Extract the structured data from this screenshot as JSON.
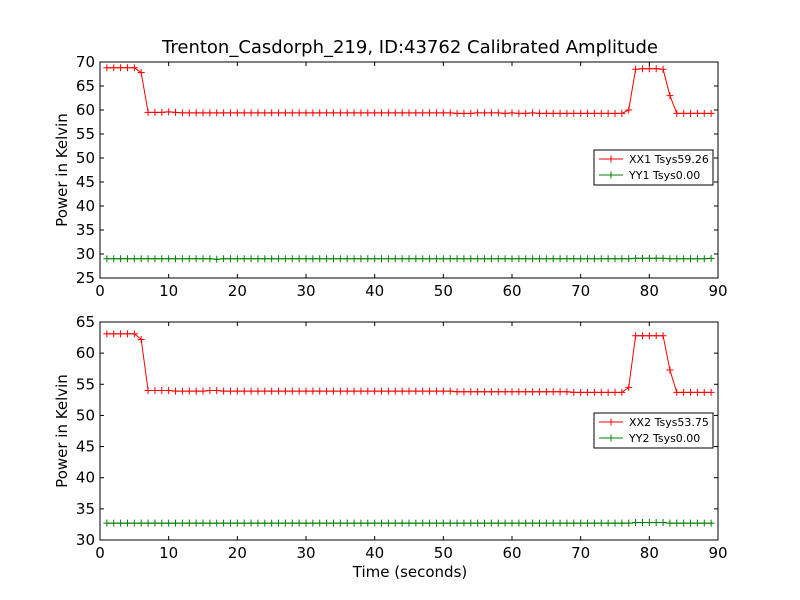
{
  "chart_data": {
    "title": "Trenton_Casdorph_219, ID:43762 Calibrated Amplitude",
    "xlabel": "Time (seconds)",
    "ylabel": "Power in Kelvin",
    "xlim": [
      0,
      90
    ],
    "xticks": [
      0,
      10,
      20,
      30,
      40,
      50,
      60,
      70,
      80,
      90
    ],
    "panels": [
      {
        "type": "line",
        "ylim": [
          25,
          70
        ],
        "yticks": [
          25,
          30,
          35,
          40,
          45,
          50,
          55,
          60,
          65,
          70
        ],
        "legend_position": "center-right",
        "series": [
          {
            "name": "XX1 Tsys59.26",
            "color": "#ff0000",
            "x": [
              1,
              2,
              3,
              4,
              5,
              6,
              7,
              8,
              9,
              10,
              11,
              12,
              13,
              14,
              15,
              16,
              17,
              18,
              19,
              20,
              21,
              22,
              23,
              24,
              25,
              26,
              27,
              28,
              29,
              30,
              31,
              32,
              33,
              34,
              35,
              36,
              37,
              38,
              39,
              40,
              41,
              42,
              43,
              44,
              45,
              46,
              47,
              48,
              49,
              50,
              51,
              52,
              53,
              54,
              55,
              56,
              57,
              58,
              59,
              60,
              61,
              62,
              63,
              64,
              65,
              66,
              67,
              68,
              69,
              70,
              71,
              72,
              73,
              74,
              75,
              76,
              77,
              78,
              79,
              80,
              81,
              82,
              83,
              84,
              85,
              86,
              87,
              88,
              89
            ],
            "y": [
              68.8,
              68.8,
              68.8,
              68.8,
              68.8,
              67.8,
              59.5,
              59.5,
              59.5,
              59.6,
              59.5,
              59.4,
              59.4,
              59.4,
              59.4,
              59.4,
              59.4,
              59.4,
              59.4,
              59.4,
              59.4,
              59.4,
              59.4,
              59.4,
              59.4,
              59.4,
              59.4,
              59.4,
              59.4,
              59.4,
              59.4,
              59.4,
              59.4,
              59.4,
              59.4,
              59.4,
              59.4,
              59.4,
              59.4,
              59.4,
              59.4,
              59.4,
              59.4,
              59.4,
              59.4,
              59.4,
              59.4,
              59.4,
              59.4,
              59.4,
              59.4,
              59.3,
              59.3,
              59.3,
              59.4,
              59.4,
              59.4,
              59.4,
              59.3,
              59.4,
              59.3,
              59.3,
              59.4,
              59.3,
              59.3,
              59.3,
              59.3,
              59.3,
              59.3,
              59.3,
              59.3,
              59.3,
              59.3,
              59.3,
              59.3,
              59.3,
              60.0,
              68.5,
              68.6,
              68.6,
              68.6,
              68.5,
              63.0,
              59.3,
              59.3,
              59.3,
              59.3,
              59.3,
              59.3
            ]
          },
          {
            "name": "YY1 Tsys0.00",
            "color": "#008000",
            "x": [
              1,
              2,
              3,
              4,
              5,
              6,
              7,
              8,
              9,
              10,
              11,
              12,
              13,
              14,
              15,
              16,
              17,
              18,
              19,
              20,
              21,
              22,
              23,
              24,
              25,
              26,
              27,
              28,
              29,
              30,
              31,
              32,
              33,
              34,
              35,
              36,
              37,
              38,
              39,
              40,
              41,
              42,
              43,
              44,
              45,
              46,
              47,
              48,
              49,
              50,
              51,
              52,
              53,
              54,
              55,
              56,
              57,
              58,
              59,
              60,
              61,
              62,
              63,
              64,
              65,
              66,
              67,
              68,
              69,
              70,
              71,
              72,
              73,
              74,
              75,
              76,
              77,
              78,
              79,
              80,
              81,
              82,
              83,
              84,
              85,
              86,
              87,
              88,
              89
            ],
            "y": [
              29.0,
              29.0,
              29.0,
              29.0,
              29.0,
              29.0,
              29.0,
              29.0,
              29.0,
              29.0,
              29.0,
              29.0,
              29.0,
              29.0,
              29.0,
              29.0,
              28.9,
              29.0,
              29.0,
              29.0,
              29.0,
              29.0,
              29.0,
              29.0,
              29.0,
              29.0,
              29.0,
              29.0,
              29.0,
              29.0,
              29.0,
              29.0,
              29.0,
              29.0,
              29.0,
              29.0,
              29.0,
              29.0,
              29.0,
              29.0,
              29.0,
              29.0,
              29.0,
              29.0,
              29.0,
              29.0,
              29.0,
              29.0,
              29.0,
              29.0,
              29.0,
              29.0,
              29.0,
              29.0,
              29.0,
              29.0,
              29.0,
              29.0,
              29.0,
              29.0,
              29.0,
              29.0,
              29.0,
              29.0,
              29.0,
              29.0,
              29.0,
              29.0,
              29.0,
              29.0,
              29.0,
              29.0,
              29.0,
              29.0,
              29.0,
              29.0,
              29.0,
              29.1,
              29.1,
              29.1,
              29.1,
              29.1,
              29.0,
              29.0,
              29.0,
              29.0,
              29.0,
              29.0,
              29.1
            ]
          }
        ]
      },
      {
        "type": "line",
        "ylim": [
          30,
          65
        ],
        "yticks": [
          30,
          35,
          40,
          45,
          50,
          55,
          60,
          65
        ],
        "legend_position": "center-right",
        "series": [
          {
            "name": "XX2 Tsys53.75",
            "color": "#ff0000",
            "x": [
              1,
              2,
              3,
              4,
              5,
              6,
              7,
              8,
              9,
              10,
              11,
              12,
              13,
              14,
              15,
              16,
              17,
              18,
              19,
              20,
              21,
              22,
              23,
              24,
              25,
              26,
              27,
              28,
              29,
              30,
              31,
              32,
              33,
              34,
              35,
              36,
              37,
              38,
              39,
              40,
              41,
              42,
              43,
              44,
              45,
              46,
              47,
              48,
              49,
              50,
              51,
              52,
              53,
              54,
              55,
              56,
              57,
              58,
              59,
              60,
              61,
              62,
              63,
              64,
              65,
              66,
              67,
              68,
              69,
              70,
              71,
              72,
              73,
              74,
              75,
              76,
              77,
              78,
              79,
              80,
              81,
              82,
              83,
              84,
              85,
              86,
              87,
              88,
              89
            ],
            "y": [
              63.1,
              63.1,
              63.1,
              63.1,
              63.1,
              62.2,
              54.0,
              54.0,
              54.0,
              54.0,
              53.9,
              53.9,
              53.9,
              53.9,
              53.9,
              54.0,
              54.0,
              53.9,
              53.9,
              53.9,
              53.9,
              53.9,
              53.9,
              53.9,
              53.9,
              53.9,
              53.9,
              53.9,
              53.9,
              53.9,
              53.9,
              53.9,
              53.9,
              53.9,
              53.9,
              53.9,
              53.9,
              53.9,
              53.9,
              53.9,
              53.9,
              53.9,
              53.9,
              53.9,
              53.9,
              53.9,
              53.9,
              53.9,
              53.9,
              53.9,
              53.9,
              53.8,
              53.8,
              53.8,
              53.8,
              53.8,
              53.8,
              53.8,
              53.8,
              53.8,
              53.8,
              53.8,
              53.8,
              53.8,
              53.8,
              53.8,
              53.8,
              53.8,
              53.7,
              53.7,
              53.7,
              53.7,
              53.7,
              53.7,
              53.7,
              53.7,
              54.5,
              62.8,
              62.8,
              62.8,
              62.8,
              62.8,
              57.3,
              53.7,
              53.7,
              53.7,
              53.7,
              53.7,
              53.7
            ]
          },
          {
            "name": "YY2 Tsys0.00",
            "color": "#008000",
            "x": [
              1,
              2,
              3,
              4,
              5,
              6,
              7,
              8,
              9,
              10,
              11,
              12,
              13,
              14,
              15,
              16,
              17,
              18,
              19,
              20,
              21,
              22,
              23,
              24,
              25,
              26,
              27,
              28,
              29,
              30,
              31,
              32,
              33,
              34,
              35,
              36,
              37,
              38,
              39,
              40,
              41,
              42,
              43,
              44,
              45,
              46,
              47,
              48,
              49,
              50,
              51,
              52,
              53,
              54,
              55,
              56,
              57,
              58,
              59,
              60,
              61,
              62,
              63,
              64,
              65,
              66,
              67,
              68,
              69,
              70,
              71,
              72,
              73,
              74,
              75,
              76,
              77,
              78,
              79,
              80,
              81,
              82,
              83,
              84,
              85,
              86,
              87,
              88,
              89
            ],
            "y": [
              32.7,
              32.7,
              32.7,
              32.7,
              32.7,
              32.7,
              32.7,
              32.7,
              32.7,
              32.7,
              32.7,
              32.7,
              32.7,
              32.7,
              32.7,
              32.7,
              32.7,
              32.7,
              32.7,
              32.7,
              32.7,
              32.7,
              32.7,
              32.7,
              32.7,
              32.7,
              32.7,
              32.7,
              32.7,
              32.7,
              32.7,
              32.7,
              32.7,
              32.7,
              32.7,
              32.7,
              32.7,
              32.7,
              32.7,
              32.7,
              32.7,
              32.7,
              32.7,
              32.7,
              32.7,
              32.7,
              32.7,
              32.7,
              32.7,
              32.7,
              32.7,
              32.7,
              32.7,
              32.7,
              32.7,
              32.7,
              32.7,
              32.7,
              32.7,
              32.7,
              32.7,
              32.7,
              32.7,
              32.7,
              32.7,
              32.7,
              32.7,
              32.7,
              32.7,
              32.7,
              32.7,
              32.7,
              32.7,
              32.7,
              32.7,
              32.7,
              32.7,
              32.8,
              32.8,
              32.8,
              32.8,
              32.8,
              32.7,
              32.7,
              32.7,
              32.7,
              32.7,
              32.7,
              32.7
            ]
          }
        ]
      }
    ]
  }
}
